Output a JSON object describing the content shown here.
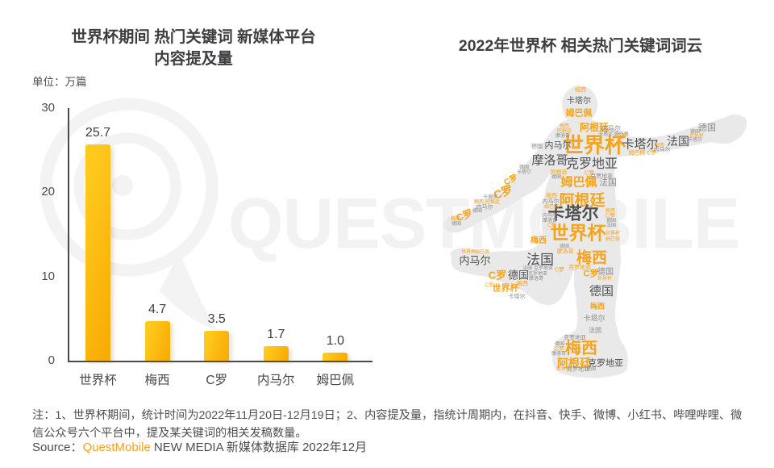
{
  "left_chart": {
    "title_line1": "世界杯期间 热门关键词 新媒体平台",
    "title_line2": "内容提及量",
    "unit_label": "单位：万篇"
  },
  "chart_data": {
    "type": "bar",
    "title": "世界杯期间 热门关键词 新媒体平台内容提及量",
    "unit": "万篇",
    "categories": [
      "世界杯",
      "梅西",
      "C罗",
      "内马尔",
      "姆巴佩"
    ],
    "values": [
      25.7,
      4.7,
      3.5,
      1.7,
      1.0
    ],
    "value_labels": [
      "25.7",
      "4.7",
      "3.5",
      "1.7",
      "1.0"
    ],
    "ylim": [
      0,
      30
    ],
    "y_ticks": [
      30,
      20,
      10,
      0
    ],
    "grid": false,
    "bar_color": "#FBB40C"
  },
  "word_cloud": {
    "title": "2022年世界杯 相关热门关键词词云",
    "shape": "soccer-player-kicking",
    "words": [
      [
        "世界杯",
        192,
        80,
        26,
        "o",
        0,
        1
      ],
      [
        "卡塔尔",
        249,
        79,
        15,
        "d",
        0,
        0
      ],
      [
        "法国",
        296,
        75,
        14,
        "d",
        0,
        0
      ],
      [
        "德国",
        332,
        59,
        11,
        "g",
        0,
        0
      ],
      [
        "内马尔",
        147,
        81,
        11,
        "d",
        0,
        0
      ],
      [
        "摩洛哥",
        137,
        99,
        15,
        "d",
        0,
        0
      ],
      [
        "克罗地亚",
        189,
        104,
        16,
        "d",
        0,
        0
      ],
      [
        "姆巴佩",
        173,
        126,
        15,
        "o",
        0,
        1
      ],
      [
        "法国",
        209,
        127,
        11,
        "g",
        0,
        0
      ],
      [
        "阿根廷",
        177,
        149,
        19,
        "o",
        0,
        1
      ],
      [
        "卡塔尔",
        166,
        165,
        21,
        "d",
        0,
        1
      ],
      [
        "世界杯",
        172,
        189,
        23,
        "o",
        0,
        1
      ],
      [
        "梅西",
        123,
        199,
        10,
        "o",
        0,
        1
      ],
      [
        "内马尔",
        44,
        223,
        13,
        "d",
        0,
        0
      ],
      [
        "法国",
        125,
        222,
        17,
        "d",
        0,
        0
      ],
      [
        "梅西",
        189,
        220,
        19,
        "o",
        0,
        1
      ],
      [
        "C罗",
        72,
        241,
        13,
        "o",
        0,
        1
      ],
      [
        "德国",
        98,
        241,
        13,
        "d",
        0,
        0
      ],
      [
        "C罗",
        188,
        240,
        11,
        "o",
        0,
        1
      ],
      [
        "德国",
        206,
        238,
        10,
        "g",
        0,
        0
      ],
      [
        "世界杯",
        82,
        258,
        11,
        "o",
        0,
        1
      ],
      [
        "德国",
        201,
        261,
        15,
        "d",
        0,
        0
      ],
      [
        "梅西",
        196,
        280,
        9,
        "o",
        0,
        1
      ],
      [
        "卡塔尔",
        192,
        295,
        9,
        "g",
        0,
        0
      ],
      [
        "法国",
        193,
        310,
        8,
        "g",
        0,
        0
      ],
      [
        "克罗地亚",
        168,
        319,
        7,
        "g",
        0,
        0
      ],
      [
        "梅西",
        176,
        332,
        20,
        "o",
        0,
        1
      ],
      [
        "阿根廷",
        167,
        350,
        14,
        "o",
        0,
        1
      ],
      [
        "克罗地亚",
        206,
        351,
        11,
        "d",
        0,
        0
      ],
      [
        "卡塔尔",
        173,
        26,
        10,
        "d",
        0,
        0
      ],
      [
        "姆巴佩",
        173,
        41,
        11,
        "o",
        0,
        1
      ],
      [
        "阿根廷",
        192,
        58,
        12,
        "o",
        0,
        1
      ],
      [
        "梅西",
        175,
        12,
        7,
        "o",
        0,
        0
      ],
      [
        "内马尔",
        213,
        60,
        8,
        "g",
        0,
        0
      ],
      [
        "卡塔尔 姆巴佩",
        216,
        67,
        6,
        "g",
        0,
        0
      ],
      [
        "梅西",
        155,
        57,
        6,
        "o",
        0,
        0
      ],
      [
        "阿根廷",
        155,
        63,
        6,
        "o",
        0,
        0
      ],
      [
        "摩洛哥",
        153,
        69,
        6,
        "g",
        0,
        0
      ],
      [
        "德国",
        121,
        82,
        7,
        "g",
        0,
        0
      ],
      [
        "C罗",
        227,
        69,
        7,
        "o",
        0,
        0
      ],
      [
        "姆巴佩 C罗",
        252,
        90,
        7,
        "o",
        0,
        0
      ],
      [
        "梅西",
        273,
        81,
        6,
        "o",
        0,
        0
      ],
      [
        "内马尔",
        276,
        86,
        7,
        "g",
        0,
        0
      ],
      [
        "德国",
        317,
        64,
        6,
        "g",
        0,
        0
      ],
      [
        "世界杯",
        319,
        69,
        6,
        "o",
        0,
        0
      ],
      [
        "卡塔尔",
        317,
        74,
        6,
        "g",
        0,
        0
      ],
      [
        "C罗",
        89,
        124,
        10,
        "o",
        -25,
        1
      ],
      [
        "C罗",
        79,
        138,
        14,
        "o",
        -20,
        1
      ],
      [
        "卡塔尔",
        63,
        145,
        6,
        "g",
        0,
        0
      ],
      [
        "梅西 阿根廷",
        59,
        151,
        6,
        "o",
        0,
        0
      ],
      [
        "内马尔",
        56,
        157,
        7,
        "g",
        0,
        0
      ],
      [
        "德国",
        47,
        162,
        6,
        "g",
        0,
        0
      ],
      [
        "C罗",
        31,
        167,
        12,
        "o",
        -20,
        1
      ],
      [
        "梅西",
        20,
        172,
        6,
        "o",
        0,
        0
      ],
      [
        "德国",
        21,
        178,
        6,
        "g",
        0,
        0
      ],
      [
        "德国",
        105,
        108,
        6,
        "g",
        0,
        0
      ],
      [
        "卡塔尔",
        105,
        114,
        6,
        "g",
        0,
        0
      ],
      [
        "阿根廷",
        148,
        114,
        7,
        "o",
        0,
        0
      ],
      [
        "德国",
        145,
        120,
        6,
        "g",
        0,
        0
      ],
      [
        "C罗",
        186,
        115,
        7,
        "o",
        0,
        0
      ],
      [
        "克罗地亚",
        201,
        119,
        7,
        "g",
        0,
        0
      ],
      [
        "梅西",
        139,
        143,
        7,
        "o",
        0,
        0
      ],
      [
        "内马尔",
        138,
        150,
        7,
        "g",
        0,
        0
      ],
      [
        "姆巴佩",
        139,
        157,
        6,
        "o",
        0,
        0
      ],
      [
        "梅西",
        212,
        162,
        6,
        "o",
        0,
        0
      ],
      [
        "C罗",
        212,
        168,
        7,
        "o",
        0,
        0
      ],
      [
        "德国",
        213,
        174,
        6,
        "g",
        0,
        0
      ],
      [
        "法国",
        213,
        180,
        6,
        "g",
        0,
        0
      ],
      [
        "内马尔",
        137,
        168,
        6,
        "g",
        0,
        0
      ],
      [
        "摩洛哥",
        137,
        174,
        6,
        "g",
        0,
        0
      ],
      [
        "C罗",
        139,
        180,
        6,
        "o",
        0,
        0
      ],
      [
        "世界杯",
        215,
        190,
        6,
        "o",
        0,
        0
      ],
      [
        "姆巴佩",
        215,
        197,
        6,
        "o",
        0,
        0
      ],
      [
        "世界杯",
        36,
        213,
        6,
        "o",
        0,
        0
      ],
      [
        "姆巴佩",
        53,
        213,
        6,
        "o",
        0,
        0
      ],
      [
        "德国",
        155,
        206,
        6,
        "g",
        0,
        0
      ],
      [
        "摩洛哥",
        156,
        212,
        7,
        "o",
        0,
        0
      ],
      [
        "C罗",
        149,
        235,
        7,
        "o",
        0,
        0
      ],
      [
        "法国 克罗地亚",
        122,
        233,
        6,
        "g",
        0,
        0
      ],
      [
        "克罗地亚",
        122,
        240,
        6,
        "g",
        0,
        0
      ],
      [
        "摩洛哥",
        120,
        246,
        6,
        "g",
        0,
        0
      ],
      [
        "克罗地亚",
        174,
        232,
        7,
        "o",
        0,
        0
      ],
      [
        "世界杯",
        205,
        246,
        6,
        "o",
        0,
        0
      ],
      [
        "梅西",
        103,
        252,
        7,
        "o",
        0,
        0
      ],
      [
        "C罗",
        62,
        254,
        6,
        "o",
        0,
        0
      ],
      [
        "卡塔尔",
        96,
        268,
        7,
        "g",
        0,
        0
      ],
      [
        "德国",
        149,
        327,
        6,
        "g",
        0,
        0
      ],
      [
        "C罗",
        149,
        333,
        7,
        "o",
        0,
        0
      ],
      [
        "摩洛哥",
        148,
        339,
        6,
        "g",
        0,
        0
      ],
      [
        "世界杯",
        154,
        358,
        6,
        "o",
        0,
        0
      ],
      [
        "克罗地亚",
        172,
        358,
        7,
        "g",
        0,
        0
      ],
      [
        "法国",
        188,
        358,
        6,
        "g",
        0,
        0
      ]
    ]
  },
  "watermark": {
    "text": "QUESTMOBILE"
  },
  "footer": {
    "note": "注：1、世界杯期间，统计时间为2022年11月20日-12月19日；2、内容提及量，指统计周期内，在抖音、快手、微博、小红书、哔哩哔哩、微信公众号六个平台中，提及某关键词的相关发稿数量。",
    "source_prefix": "Source：",
    "source_brand": "QuestMobile",
    "source_rest": " NEW MEDIA 新媒体数据库 2022年12月"
  },
  "colors": {
    "accent_orange": "#F6A41E",
    "bar_yellow_top": "#FFC91E",
    "bar_yellow_bottom": "#F8AD05",
    "dark_word": "#4F4F52",
    "gray_word": "#8C8C8C",
    "silhouette": "#E9E9E9",
    "watermark": "#F2F2F2",
    "title_text": "#3E3E40"
  }
}
